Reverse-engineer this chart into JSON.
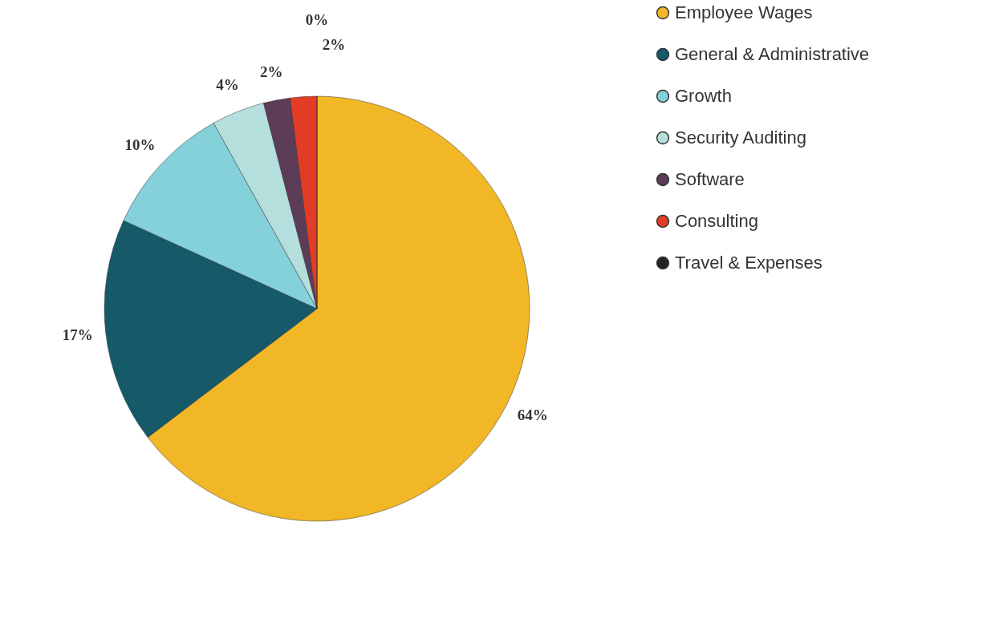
{
  "chart_data": {
    "type": "pie",
    "categories": [
      "Employee Wages",
      "General & Administrative",
      "Growth",
      "Security Auditing",
      "Software",
      "Consulting",
      "Travel & Expenses"
    ],
    "values": [
      64,
      17,
      10,
      4,
      2,
      2,
      0
    ],
    "colors": [
      "#f2b726",
      "#165a6a",
      "#85d1d9",
      "#b5dfdc",
      "#5c3c57",
      "#e23c26",
      "#222222"
    ],
    "value_labels": [
      "64%",
      "17%",
      "10%",
      "4%",
      "2%",
      "2%",
      "0%"
    ],
    "legend": "right"
  }
}
